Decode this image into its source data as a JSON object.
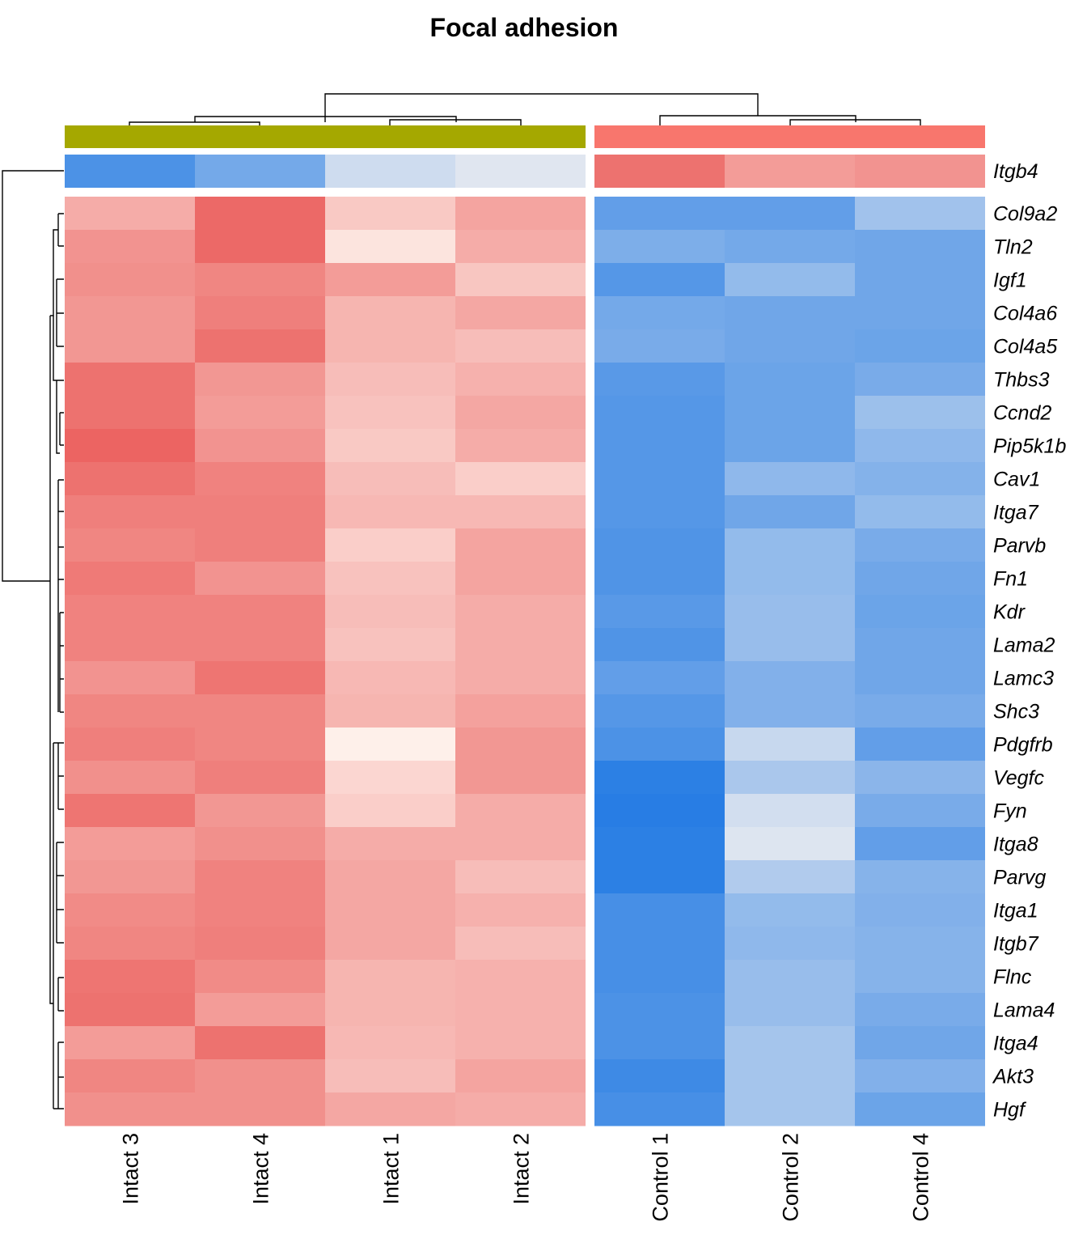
{
  "chart_data": {
    "type": "heatmap",
    "title": "Focal adhesion",
    "columns": [
      "Intact 3",
      "Intact 4",
      "Intact 1",
      "Intact 2",
      "Control 1",
      "Control 2",
      "Control 4"
    ],
    "column_groups": [
      {
        "name": "Intact",
        "color": "#A5A800",
        "columns": [
          "Intact 3",
          "Intact 4",
          "Intact 1",
          "Intact 2"
        ]
      },
      {
        "name": "Control",
        "color": "#F8766D",
        "columns": [
          "Control 1",
          "Control 2",
          "Control 4"
        ]
      }
    ],
    "top_row": {
      "label": "Itgb4",
      "values": [
        -0.8,
        -0.62,
        -0.22,
        -0.14,
        0.8,
        0.55,
        0.6
      ]
    },
    "rows": [
      "Col9a2",
      "Tln2",
      "Igf1",
      "Col4a6",
      "Col4a5",
      "Thbs3",
      "Ccnd2",
      "Pip5k1b",
      "Cav1",
      "Itga7",
      "Parvb",
      "Fn1",
      "Kdr",
      "Lama2",
      "Lamc3",
      "Shc3",
      "Pdgfrb",
      "Vegfc",
      "Fyn",
      "Itga8",
      "Parvg",
      "Itga1",
      "Itgb7",
      "Flnc",
      "Lama4",
      "Itga4",
      "Akt3",
      "Hgf"
    ],
    "values": [
      [
        0.45,
        0.85,
        0.28,
        0.5,
        -0.7,
        -0.7,
        -0.42
      ],
      [
        0.6,
        0.85,
        0.12,
        0.45,
        -0.58,
        -0.62,
        -0.64
      ],
      [
        0.62,
        0.68,
        0.55,
        0.3,
        -0.76,
        -0.48,
        -0.64
      ],
      [
        0.58,
        0.72,
        0.4,
        0.48,
        -0.62,
        -0.64,
        -0.64
      ],
      [
        0.58,
        0.8,
        0.4,
        0.35,
        -0.6,
        -0.64,
        -0.66
      ],
      [
        0.8,
        0.58,
        0.35,
        0.42,
        -0.74,
        -0.66,
        -0.6
      ],
      [
        0.8,
        0.55,
        0.32,
        0.48,
        -0.76,
        -0.66,
        -0.44
      ],
      [
        0.88,
        0.6,
        0.28,
        0.45,
        -0.76,
        -0.66,
        -0.5
      ],
      [
        0.8,
        0.7,
        0.35,
        0.25,
        -0.76,
        -0.5,
        -0.55
      ],
      [
        0.72,
        0.72,
        0.38,
        0.38,
        -0.76,
        -0.64,
        -0.48
      ],
      [
        0.68,
        0.72,
        0.25,
        0.5,
        -0.78,
        -0.48,
        -0.6
      ],
      [
        0.75,
        0.6,
        0.32,
        0.5,
        -0.78,
        -0.48,
        -0.64
      ],
      [
        0.7,
        0.7,
        0.35,
        0.45,
        -0.74,
        -0.46,
        -0.66
      ],
      [
        0.7,
        0.7,
        0.32,
        0.45,
        -0.78,
        -0.46,
        -0.64
      ],
      [
        0.6,
        0.78,
        0.38,
        0.45,
        -0.7,
        -0.56,
        -0.64
      ],
      [
        0.68,
        0.68,
        0.4,
        0.52,
        -0.76,
        -0.56,
        -0.6
      ],
      [
        0.72,
        0.68,
        0.05,
        0.58,
        -0.8,
        -0.25,
        -0.7
      ],
      [
        0.62,
        0.72,
        0.2,
        0.58,
        -0.94,
        -0.38,
        -0.52
      ],
      [
        0.78,
        0.58,
        0.25,
        0.45,
        -0.96,
        -0.2,
        -0.6
      ],
      [
        0.55,
        0.62,
        0.45,
        0.45,
        -0.94,
        -0.15,
        -0.7
      ],
      [
        0.58,
        0.7,
        0.48,
        0.35,
        -0.94,
        -0.35,
        -0.54
      ],
      [
        0.65,
        0.7,
        0.48,
        0.42,
        -0.82,
        -0.48,
        -0.56
      ],
      [
        0.68,
        0.72,
        0.48,
        0.35,
        -0.82,
        -0.5,
        -0.54
      ],
      [
        0.78,
        0.65,
        0.4,
        0.42,
        -0.82,
        -0.46,
        -0.54
      ],
      [
        0.8,
        0.55,
        0.4,
        0.42,
        -0.8,
        -0.46,
        -0.6
      ],
      [
        0.55,
        0.8,
        0.38,
        0.42,
        -0.8,
        -0.4,
        -0.64
      ],
      [
        0.68,
        0.62,
        0.35,
        0.5,
        -0.86,
        -0.4,
        -0.56
      ],
      [
        0.62,
        0.62,
        0.48,
        0.45,
        -0.82,
        -0.4,
        -0.66
      ]
    ],
    "color_scale": {
      "negative": "#1F78E3",
      "zero": "#FFF8F2",
      "positive": "#E9504E",
      "min": -1,
      "max": 1
    }
  }
}
